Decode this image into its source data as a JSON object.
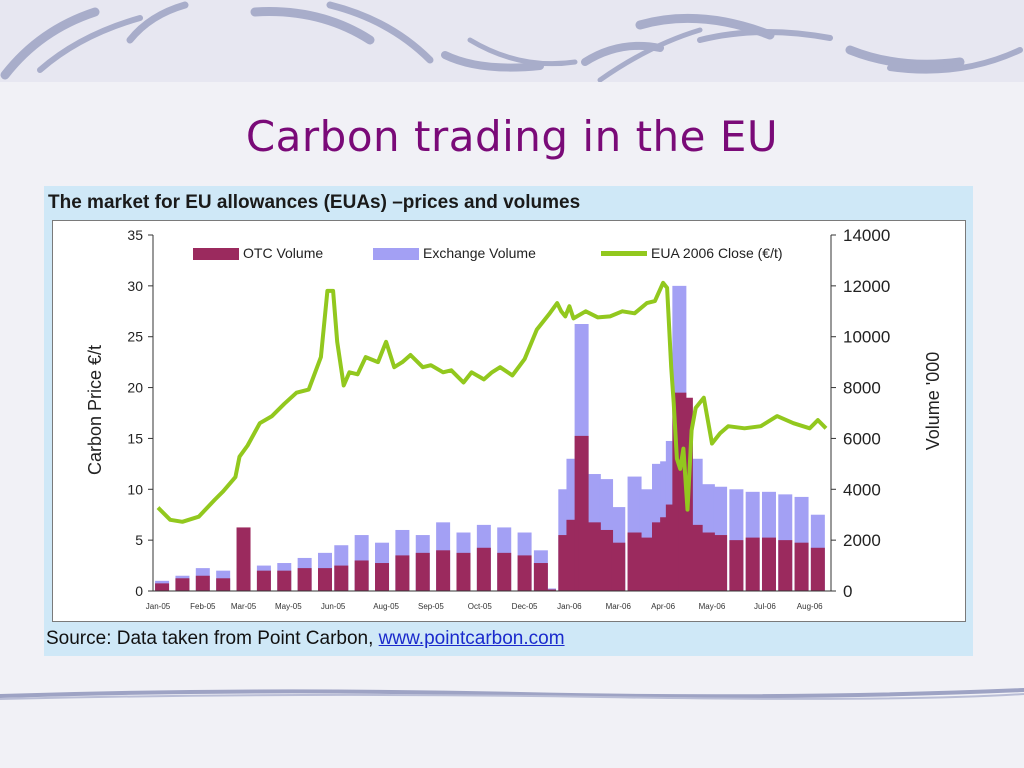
{
  "slide": {
    "title": "Carbon trading in the EU"
  },
  "figure": {
    "heading": "The market for EU allowances (EUAs) –prices and volumes",
    "source_prefix": "Source: Data taken from Point Carbon, ",
    "source_link": "www.pointcarbon.com"
  },
  "chart_data": {
    "type": "bar",
    "title": "The market for EU allowances (EUAs) –prices and volumes",
    "ylabel": "Carbon Price €/t",
    "y2label": "Volume '000",
    "ylim": [
      0,
      35
    ],
    "y2lim": [
      0,
      14000
    ],
    "yticks": [
      0,
      5,
      10,
      15,
      20,
      25,
      30,
      35
    ],
    "y2ticks": [
      0,
      2000,
      4000,
      6000,
      8000,
      10000,
      12000,
      14000
    ],
    "x_ticks": [
      "Jan-05",
      "Feb-05",
      "Mar-05",
      "May-05",
      "Jun-05",
      "Aug-05",
      "Sep-05",
      "Oct-05",
      "Dec-05",
      "Jan-06",
      "Mar-06",
      "Apr-06",
      "May-06",
      "Jul-06",
      "Aug-06"
    ],
    "x_tick_pos": [
      0,
      0.055,
      0.105,
      0.16,
      0.215,
      0.28,
      0.335,
      0.395,
      0.45,
      0.505,
      0.565,
      0.62,
      0.68,
      0.745,
      0.8
    ],
    "legend_position": "top",
    "colors": {
      "otc": "#9b2a5e",
      "exchange": "#a3a0f4",
      "price": "#92c81e",
      "axis": "#333333"
    },
    "series": [
      {
        "name": "EUA 2006 Close (€/t)",
        "kind": "line",
        "axis": "left",
        "x": [
          0,
          0.015,
          0.03,
          0.05,
          0.07,
          0.08,
          0.095,
          0.1,
          0.11,
          0.125,
          0.14,
          0.155,
          0.17,
          0.185,
          0.2,
          0.208,
          0.215,
          0.22,
          0.228,
          0.235,
          0.245,
          0.255,
          0.27,
          0.28,
          0.29,
          0.3,
          0.31,
          0.325,
          0.335,
          0.35,
          0.36,
          0.375,
          0.385,
          0.4,
          0.41,
          0.42,
          0.435,
          0.45,
          0.465,
          0.48,
          0.49,
          0.495,
          0.5,
          0.505,
          0.51,
          0.525,
          0.54,
          0.555,
          0.57,
          0.585,
          0.6,
          0.61,
          0.62,
          0.625,
          0.63,
          0.633,
          0.637,
          0.641,
          0.645,
          0.65,
          0.655,
          0.66,
          0.67,
          0.68,
          0.69,
          0.7,
          0.72,
          0.74,
          0.76,
          0.78,
          0.8,
          0.81,
          0.82
        ],
        "values": [
          8.2,
          7,
          6.8,
          7.3,
          9,
          9.8,
          11.2,
          13.2,
          14.3,
          16.5,
          17.2,
          18.4,
          19.5,
          19.8,
          23,
          29.5,
          29.5,
          24.5,
          20.2,
          21.5,
          21.3,
          23,
          22.5,
          24.5,
          22,
          22.5,
          23.2,
          22,
          22.2,
          21.5,
          21.7,
          20.5,
          21.5,
          20.8,
          21.5,
          22,
          21.2,
          22.8,
          25.7,
          27.2,
          28.3,
          27.5,
          27,
          28,
          26.8,
          27.5,
          26.9,
          27,
          27.5,
          27.3,
          28.3,
          28.5,
          30.3,
          29.8,
          22,
          18.5,
          13,
          12,
          14,
          8,
          15.8,
          18,
          19,
          14.5,
          15.5,
          16.2,
          16,
          16.2,
          17.2,
          16.5,
          16,
          16.8,
          16
        ]
      },
      {
        "name": "Exchange Volume",
        "kind": "bar",
        "axis": "right",
        "x": [
          0.005,
          0.03,
          0.055,
          0.08,
          0.105,
          0.13,
          0.155,
          0.18,
          0.205,
          0.225,
          0.25,
          0.275,
          0.3,
          0.325,
          0.35,
          0.375,
          0.4,
          0.425,
          0.45,
          0.47,
          0.48,
          0.5,
          0.51,
          0.52,
          0.525,
          0.535,
          0.55,
          0.565,
          0.585,
          0.6,
          0.615,
          0.625,
          0.632,
          0.64,
          0.648,
          0.66,
          0.675,
          0.69,
          0.71,
          0.73,
          0.75,
          0.77,
          0.79,
          0.81
        ],
        "values": [
          400,
          600,
          900,
          800,
          900,
          1000,
          1100,
          1300,
          1500,
          1800,
          2200,
          1900,
          2400,
          2200,
          2700,
          2300,
          2600,
          2500,
          2300,
          1600,
          100,
          4000,
          5200,
          10500,
          4400,
          4600,
          4400,
          3300,
          4500,
          4000,
          5000,
          5100,
          5900,
          12000,
          6000,
          5200,
          4200,
          4100,
          4000,
          3900,
          3900,
          3800,
          3700,
          3000
        ]
      },
      {
        "name": "OTC Volume",
        "kind": "bar",
        "axis": "right",
        "x": [
          0.005,
          0.03,
          0.055,
          0.08,
          0.105,
          0.13,
          0.155,
          0.18,
          0.205,
          0.225,
          0.25,
          0.275,
          0.3,
          0.325,
          0.35,
          0.375,
          0.4,
          0.425,
          0.45,
          0.47,
          0.48,
          0.5,
          0.51,
          0.52,
          0.525,
          0.535,
          0.55,
          0.565,
          0.585,
          0.6,
          0.615,
          0.625,
          0.632,
          0.64,
          0.648,
          0.66,
          0.675,
          0.69,
          0.71,
          0.73,
          0.75,
          0.77,
          0.79,
          0.81
        ],
        "values": [
          300,
          500,
          600,
          500,
          2500,
          800,
          800,
          900,
          900,
          1000,
          1200,
          1100,
          1400,
          1500,
          1600,
          1500,
          1700,
          1500,
          1400,
          1100,
          60,
          2200,
          2800,
          6100,
          2600,
          2700,
          2400,
          1900,
          2300,
          2100,
          2700,
          2900,
          3400,
          7800,
          7600,
          2600,
          2300,
          2200,
          2000,
          2100,
          2100,
          2000,
          1900,
          1700
        ]
      }
    ]
  }
}
